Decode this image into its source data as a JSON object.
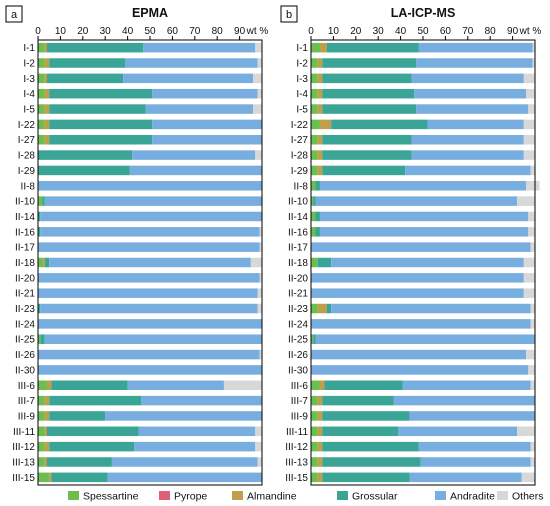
{
  "colors": {
    "Spessartine": "#6cbf4f",
    "Pyrope": "#e0607a",
    "Almandine": "#bf9f4a",
    "Grossular": "#3aa597",
    "Andradite": "#78aedf",
    "Others": "#d8d8d8"
  },
  "legend": [
    "Spessartine",
    "Pyrope",
    "Almandine",
    "Grossular",
    "Andradite",
    "Others"
  ],
  "chart_data": [
    {
      "type": "bar",
      "orientation": "horizontal",
      "stacked": true,
      "panel_label": "a",
      "title": "EPMA",
      "xlabel": "wt %",
      "xlim": [
        0,
        100
      ],
      "xticks": [
        0,
        10,
        20,
        30,
        40,
        50,
        60,
        70,
        80,
        90
      ],
      "categories": [
        "I-1",
        "I-2",
        "I-3",
        "I-4",
        "I-5",
        "I-22",
        "I-27",
        "I-28",
        "I-29",
        "II-8",
        "II-10",
        "II-14",
        "II-16",
        "II-17",
        "II-18",
        "II-20",
        "II-21",
        "II-23",
        "II-24",
        "II-25",
        "II-26",
        "II-30",
        "III-6",
        "III-7",
        "III-9",
        "III-11",
        "III-12",
        "III-13",
        "III-15"
      ],
      "series": [
        {
          "name": "Spessartine",
          "values": [
            3,
            3,
            3,
            3,
            3,
            3,
            3,
            0,
            0,
            0,
            2,
            0,
            0,
            0,
            2,
            0,
            0,
            0,
            0,
            1,
            0,
            0,
            4,
            3,
            3,
            3,
            3,
            3,
            5
          ]
        },
        {
          "name": "Pyrope",
          "values": [
            0,
            0,
            0,
            0,
            0,
            0,
            0,
            0,
            0,
            0,
            0,
            0,
            0,
            0,
            0,
            0,
            0,
            0,
            0,
            0,
            0,
            0,
            0,
            0,
            0,
            0,
            0,
            0,
            0
          ]
        },
        {
          "name": "Almandine",
          "values": [
            1,
            2,
            1,
            2,
            2,
            2,
            2,
            0,
            0,
            0,
            0,
            0,
            0,
            0,
            1,
            0,
            0,
            0,
            0,
            0,
            0,
            0,
            2,
            2,
            2,
            1,
            2,
            1,
            1
          ]
        },
        {
          "name": "Grossular",
          "values": [
            43,
            34,
            34,
            46,
            43,
            46,
            46,
            42,
            41,
            0,
            1,
            1,
            1,
            0,
            2,
            0,
            0,
            1,
            0,
            2,
            0,
            0,
            34,
            41,
            25,
            41,
            38,
            29,
            25
          ]
        },
        {
          "name": "Andradite",
          "values": [
            50,
            59,
            58,
            47,
            48,
            49,
            49,
            55,
            59,
            100,
            97,
            99,
            98,
            99,
            90,
            99,
            98,
            97,
            100,
            97,
            99,
            100,
            43,
            54,
            70,
            52,
            54,
            65,
            69
          ]
        },
        {
          "name": "Others",
          "values": [
            3,
            2,
            4,
            2,
            4,
            0,
            0,
            3,
            0,
            0,
            0,
            0,
            1,
            1,
            5,
            1,
            2,
            2,
            0,
            0,
            1,
            0,
            17,
            0,
            0,
            3,
            3,
            2,
            0
          ]
        }
      ]
    },
    {
      "type": "bar",
      "orientation": "horizontal",
      "stacked": true,
      "panel_label": "b",
      "title": "LA-ICP-MS",
      "xlabel": "wt %",
      "xlim": [
        0,
        100
      ],
      "xticks": [
        0,
        10,
        20,
        30,
        40,
        50,
        60,
        70,
        80,
        90
      ],
      "categories": [
        "I-1",
        "I-2",
        "I-3",
        "I-4",
        "I-5",
        "I-22",
        "I-27",
        "I-28",
        "I-29",
        "II-8",
        "II-10",
        "II-14",
        "II-16",
        "II-17",
        "II-18",
        "II-20",
        "II-21",
        "II-23",
        "II-24",
        "II-25",
        "II-26",
        "II-30",
        "III-6",
        "III-7",
        "III-9",
        "III-11",
        "III-12",
        "III-13",
        "III-15"
      ],
      "series": [
        {
          "name": "Spessartine",
          "values": [
            4,
            3,
            3,
            3,
            3,
            4,
            3,
            3,
            3,
            2,
            1,
            2,
            2,
            0,
            3,
            0,
            0,
            3,
            0,
            1,
            0,
            0,
            4,
            3,
            3,
            3,
            3,
            3,
            3
          ]
        },
        {
          "name": "Pyrope",
          "values": [
            0,
            0,
            0,
            0,
            0,
            0,
            0,
            0,
            0,
            0,
            0,
            0,
            0,
            0,
            0,
            0,
            0,
            0,
            0,
            0,
            0,
            0,
            0,
            0,
            0,
            0,
            0,
            0,
            0
          ]
        },
        {
          "name": "Almandine",
          "values": [
            3,
            2,
            2,
            2,
            2,
            5,
            2,
            2,
            2,
            0,
            0,
            0,
            0,
            0,
            0,
            0,
            0,
            4,
            0,
            0,
            0,
            0,
            2,
            2,
            2,
            2,
            2,
            2,
            2
          ]
        },
        {
          "name": "Grossular",
          "values": [
            41,
            42,
            40,
            41,
            42,
            43,
            40,
            40,
            37,
            2,
            1,
            2,
            2,
            0,
            6,
            0,
            0,
            2,
            0,
            1,
            0,
            0,
            35,
            32,
            39,
            34,
            43,
            44,
            39
          ]
        },
        {
          "name": "Andradite",
          "values": [
            51,
            52,
            50,
            50,
            50,
            43,
            50,
            50,
            56,
            92,
            90,
            93,
            93,
            98,
            86,
            95,
            95,
            89,
            98,
            98,
            96,
            97,
            57,
            63,
            56,
            53,
            50,
            49,
            50
          ]
        },
        {
          "name": "Others",
          "values": [
            1,
            1,
            5,
            4,
            3,
            5,
            5,
            5,
            2,
            6,
            8,
            3,
            3,
            2,
            5,
            5,
            5,
            2,
            2,
            0,
            4,
            3,
            2,
            0,
            0,
            8,
            2,
            2,
            6
          ]
        }
      ]
    }
  ]
}
